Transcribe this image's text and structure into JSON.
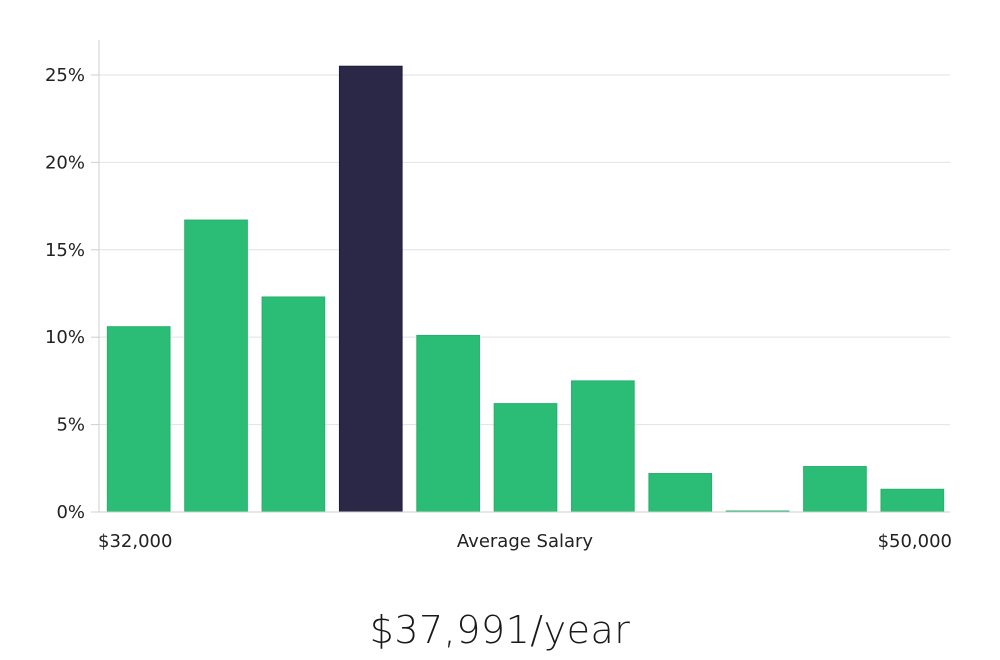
{
  "chart_data": {
    "type": "bar",
    "title": "",
    "xlabel": "Average Salary",
    "ylabel": "",
    "x_range_labels": [
      "$32,000",
      "$50,000"
    ],
    "ylim": [
      0,
      27
    ],
    "yticks": [
      0,
      5,
      10,
      15,
      20,
      25
    ],
    "ytick_labels": [
      "0%",
      "5%",
      "10%",
      "15%",
      "20%",
      "25%"
    ],
    "grid": true,
    "values": [
      10.6,
      16.7,
      12.3,
      25.5,
      10.1,
      6.2,
      7.5,
      2.2,
      0.05,
      2.6,
      1.3
    ],
    "highlight_index": 3,
    "colors": {
      "bar": "#2bbd75",
      "highlight": "#2a2747",
      "axis": "#cfcfcf"
    }
  },
  "summary": {
    "salary": "$37,991/year"
  }
}
